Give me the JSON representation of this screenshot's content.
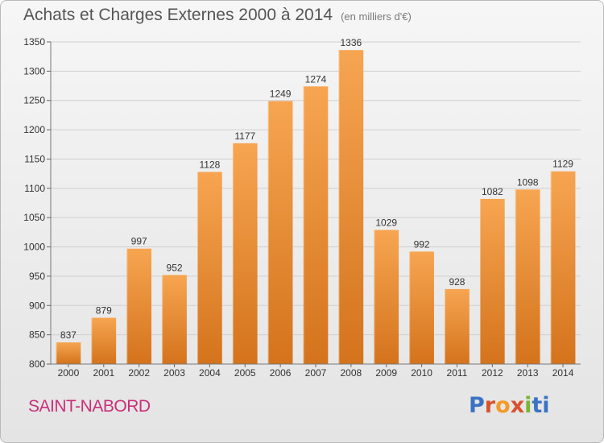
{
  "header": {
    "title": "Achats et Charges Externes 2000 à 2014",
    "subtitle": "(en milliers d'€)"
  },
  "footer": {
    "commune": "SAINT-NABORD",
    "logo_text": "Proxiti"
  },
  "colors": {
    "bar_light": "#f7a551",
    "bar_dark": "#d4731c",
    "commune_text": "#c9307a",
    "logo_letters": [
      "#3b73c4",
      "#d8522e",
      "#f39a28",
      "#d8522e",
      "#7bb534",
      "#3b73c4",
      "#3b73c4"
    ]
  },
  "chart_data": {
    "type": "bar",
    "title": "Achats et Charges Externes 2000 à 2014",
    "subtitle": "(en milliers d'€)",
    "xlabel": "",
    "ylabel": "",
    "categories": [
      "2000",
      "2001",
      "2002",
      "2003",
      "2004",
      "2005",
      "2006",
      "2007",
      "2008",
      "2009",
      "2010",
      "2011",
      "2012",
      "2013",
      "2014"
    ],
    "values": [
      837,
      879,
      997,
      952,
      1128,
      1177,
      1249,
      1274,
      1336,
      1029,
      992,
      928,
      1082,
      1098,
      1129
    ],
    "value_labels": [
      "837",
      "879",
      "997",
      "952",
      "1128",
      "1177",
      "1249",
      "1274",
      "1336",
      "1029",
      "992",
      "928",
      "1082",
      "1098",
      "1129"
    ],
    "ylim": [
      800,
      1350
    ],
    "yticks": [
      800,
      850,
      900,
      950,
      1000,
      1050,
      1100,
      1150,
      1200,
      1250,
      1300,
      1350
    ],
    "ytick_labels": [
      "800",
      "850",
      "900",
      "950",
      "1000",
      "1050",
      "1100",
      "1150",
      "1200",
      "1250",
      "1300",
      "1350"
    ],
    "grid": true,
    "legend": "none"
  }
}
